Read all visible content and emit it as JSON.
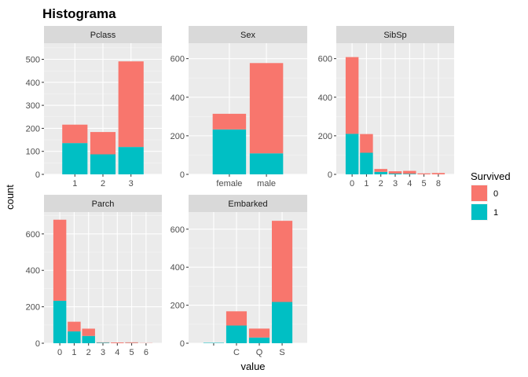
{
  "chart_data": {
    "type": "bar",
    "title": "Histograma",
    "xlabel": "value",
    "ylabel": "count",
    "stacked": true,
    "facet_scales": "free",
    "legend": {
      "title": "Survived",
      "position": "right",
      "entries": [
        {
          "label": "0",
          "color": "#F8766D"
        },
        {
          "label": "1",
          "color": "#00BFC4"
        }
      ]
    },
    "panels": [
      {
        "name": "Pclass",
        "categories": [
          "1",
          "2",
          "3"
        ],
        "yticks": [
          0,
          100,
          200,
          300,
          400,
          500
        ],
        "ylim": [
          0,
          570
        ],
        "series": [
          {
            "name": "0",
            "values": [
              80,
              97,
              372
            ]
          },
          {
            "name": "1",
            "values": [
              136,
              87,
              119
            ]
          }
        ]
      },
      {
        "name": "Sex",
        "categories": [
          "female",
          "male"
        ],
        "yticks": [
          0,
          200,
          400,
          600
        ],
        "ylim": [
          0,
          680
        ],
        "series": [
          {
            "name": "0",
            "values": [
              81,
              468
            ]
          },
          {
            "name": "1",
            "values": [
              233,
              109
            ]
          }
        ]
      },
      {
        "name": "SibSp",
        "categories": [
          "0",
          "1",
          "2",
          "3",
          "4",
          "5",
          "8"
        ],
        "yticks": [
          0,
          200,
          400,
          600
        ],
        "ylim": [
          0,
          680
        ],
        "series": [
          {
            "name": "0",
            "values": [
              398,
              97,
              15,
              12,
              15,
              5,
              7
            ]
          },
          {
            "name": "1",
            "values": [
              210,
              112,
              13,
              4,
              3,
              0,
              0
            ]
          }
        ]
      },
      {
        "name": "Parch",
        "categories": [
          "0",
          "1",
          "2",
          "3",
          "4",
          "5",
          "6"
        ],
        "yticks": [
          0,
          200,
          400,
          600
        ],
        "ylim": [
          0,
          720
        ],
        "series": [
          {
            "name": "0",
            "values": [
              445,
              53,
              40,
              2,
              4,
              4,
              1
            ]
          },
          {
            "name": "1",
            "values": [
              233,
              65,
              40,
              3,
              0,
              1,
              0
            ]
          }
        ]
      },
      {
        "name": "Embarked",
        "categories": [
          "",
          "C",
          "Q",
          "S"
        ],
        "yticks": [
          0,
          200,
          400,
          600
        ],
        "ylim": [
          0,
          690
        ],
        "series": [
          {
            "name": "0",
            "values": [
              0,
              75,
              47,
              427
            ]
          },
          {
            "name": "1",
            "values": [
              2,
              93,
              30,
              217
            ]
          }
        ]
      }
    ]
  }
}
